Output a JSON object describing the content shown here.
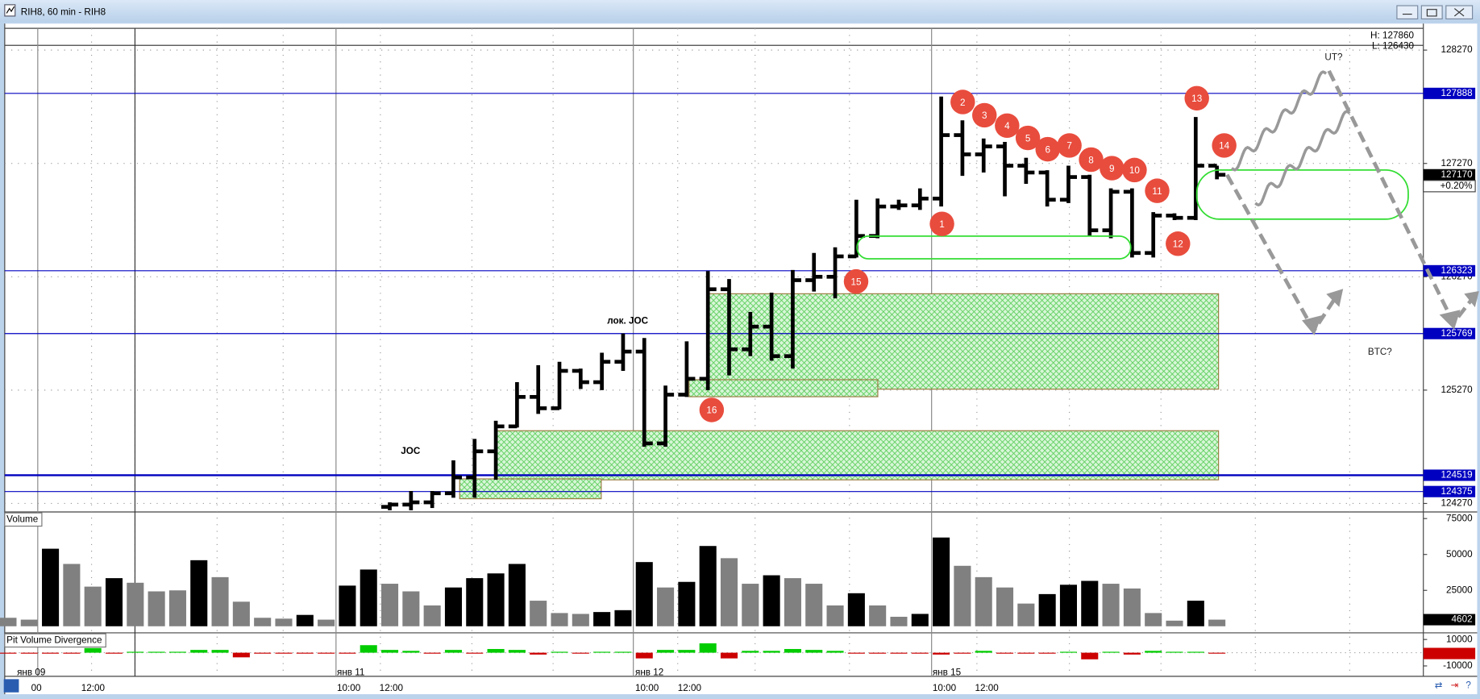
{
  "window": {
    "title": "RIH8, 60 min - RIH8"
  },
  "chart_data": [
    {
      "type": "ohlc",
      "color": "#000000",
      "grid": true,
      "ylim": [
        124195,
        128462
      ],
      "yticks": [
        128270,
        127270,
        126270,
        125270,
        124270
      ],
      "open": [
        null,
        null,
        null,
        null,
        null,
        null,
        null,
        null,
        null,
        null,
        null,
        null,
        null,
        null,
        null,
        null,
        null,
        null,
        124240,
        124260,
        124280,
        124360,
        124500,
        124730,
        124950,
        125210,
        125110,
        125440,
        125340,
        125520,
        125610,
        124800,
        125230,
        125370,
        126160,
        125630,
        125830,
        125570,
        126240,
        126270,
        126450,
        126630,
        126890,
        126900,
        126960,
        127520,
        127350,
        127420,
        127250,
        127190,
        126950,
        127150,
        126680,
        127020,
        126480,
        126810,
        126790,
        127250
      ],
      "high": [
        null,
        null,
        null,
        null,
        null,
        null,
        null,
        null,
        null,
        null,
        null,
        null,
        null,
        null,
        null,
        null,
        null,
        null,
        124280,
        124380,
        124380,
        124650,
        124840,
        125000,
        125340,
        125490,
        125520,
        125460,
        125600,
        125770,
        125730,
        125310,
        125700,
        126320,
        126250,
        125960,
        126130,
        126330,
        126480,
        126530,
        126950,
        126960,
        126950,
        127050,
        127860,
        127650,
        127490,
        127460,
        127320,
        127210,
        127250,
        127170,
        127050,
        127050,
        126840,
        126830,
        127680,
        127250
      ],
      "low": [
        null,
        null,
        null,
        null,
        null,
        null,
        null,
        null,
        null,
        null,
        null,
        null,
        null,
        null,
        null,
        null,
        null,
        null,
        124210,
        124210,
        124230,
        124320,
        124320,
        124480,
        124940,
        125060,
        125100,
        125280,
        125270,
        125440,
        124770,
        124770,
        125210,
        125270,
        125400,
        125570,
        125530,
        125460,
        126140,
        126080,
        126440,
        126610,
        126860,
        126860,
        126890,
        127160,
        127190,
        126980,
        127090,
        126890,
        126920,
        126630,
        126610,
        126440,
        126440,
        126770,
        126770,
        127130
      ],
      "close": [
        null,
        null,
        null,
        null,
        null,
        null,
        null,
        null,
        null,
        null,
        null,
        null,
        null,
        null,
        null,
        null,
        null,
        null,
        124260,
        124280,
        124360,
        124500,
        124730,
        124950,
        125210,
        125110,
        125440,
        125340,
        125520,
        125610,
        124800,
        125230,
        125370,
        126160,
        125630,
        125830,
        125570,
        126240,
        126270,
        126450,
        126630,
        126890,
        126900,
        126960,
        127520,
        127350,
        127420,
        127250,
        127190,
        126950,
        127150,
        126680,
        127020,
        126480,
        126810,
        126790,
        127250,
        127170
      ],
      "levels": [
        127888,
        126323,
        125769,
        124519,
        124375
      ],
      "level_color": "#0000c0",
      "last": 127170,
      "change": "+0.20%",
      "hl_labels": [
        "H: 127860",
        "L: 126430"
      ],
      "annotations": [
        "JOC",
        "лок. JOC",
        "UT?",
        "BTC?"
      ],
      "markers": [
        "1",
        "2",
        "3",
        "4",
        "5",
        "6",
        "7",
        "8",
        "9",
        "10",
        "11",
        "12",
        "13",
        "14",
        "15",
        "16"
      ],
      "marker_color": "#e84c3d"
    },
    {
      "type": "bar",
      "title": "Volume",
      "ylim": [
        0,
        79600
      ],
      "yticks": [
        75000,
        50000,
        25000
      ],
      "last": 4602,
      "values": [
        5900,
        4600,
        54000,
        43400,
        27600,
        33500,
        30300,
        24300,
        25000,
        46000,
        34200,
        17100,
        5900,
        5300,
        7900,
        4600,
        28300,
        39500,
        29600,
        24300,
        14500,
        27000,
        33500,
        36800,
        43400,
        17800,
        9200,
        8600,
        9900,
        11200,
        44700,
        27000,
        30900,
        55900,
        47400,
        29600,
        35500,
        33500,
        29600,
        14500,
        23000,
        14500,
        6600,
        8600,
        61800,
        42100,
        34200,
        27000,
        15800,
        22400,
        28900,
        31600,
        29600,
        26300,
        9200,
        3900,
        17800,
        4602
      ],
      "colors": [
        "#808080",
        "#808080",
        "#000000",
        "#808080",
        "#808080",
        "#000000",
        "#808080",
        "#808080",
        "#808080",
        "#000000",
        "#808080",
        "#808080",
        "#808080",
        "#808080",
        "#000000",
        "#808080",
        "#000000",
        "#000000",
        "#808080",
        "#808080",
        "#808080",
        "#000000",
        "#000000",
        "#000000",
        "#000000",
        "#808080",
        "#808080",
        "#808080",
        "#000000",
        "#000000",
        "#000000",
        "#808080",
        "#000000",
        "#000000",
        "#808080",
        "#808080",
        "#000000",
        "#808080",
        "#808080",
        "#808080",
        "#000000",
        "#808080",
        "#808080",
        "#000000",
        "#000000",
        "#808080",
        "#808080",
        "#808080",
        "#808080",
        "#000000",
        "#000000",
        "#000000",
        "#808080",
        "#808080",
        "#808080",
        "#808080",
        "#000000",
        "#808080"
      ]
    },
    {
      "type": "bar",
      "title": "Pit Volume Divergence",
      "ylim": [
        -15000,
        15000
      ],
      "yticks": [
        10000,
        -10000
      ],
      "last": -598,
      "up_color": "#00cc00",
      "down_color": "#cc0000",
      "values": [
        -700,
        -700,
        -700,
        -700,
        3500,
        -700,
        700,
        700,
        700,
        2100,
        2100,
        -3500,
        -700,
        -700,
        -700,
        -700,
        -700,
        5700,
        2100,
        1400,
        -700,
        2100,
        -700,
        2800,
        2100,
        -1400,
        700,
        -700,
        700,
        700,
        -4300,
        2100,
        2100,
        7100,
        -4300,
        1400,
        1400,
        2800,
        2100,
        1400,
        -700,
        -700,
        -700,
        -700,
        -1400,
        -700,
        1400,
        -700,
        -700,
        -700,
        700,
        -5000,
        700,
        -1400,
        1400,
        700,
        700,
        -598
      ]
    }
  ],
  "time_axis": {
    "labels": [
      "янв 09",
      "00",
      "12:00",
      "янв 11",
      "10:00",
      "12:00",
      "янв 12",
      "10:00",
      "12:00",
      "янв 15",
      "10:00",
      "12:00"
    ]
  }
}
